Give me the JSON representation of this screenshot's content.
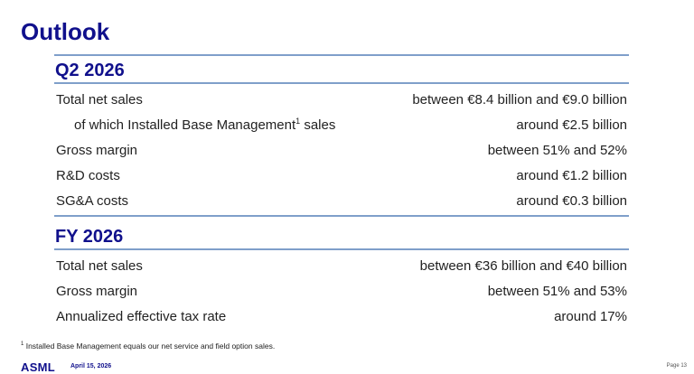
{
  "title": "Outlook",
  "sections": [
    {
      "heading": "Q2 2026",
      "rows": [
        {
          "label": "Total net sales",
          "value": "between €8.4 billion and €9.0 billion"
        },
        {
          "label": "of which Installed Base Management",
          "sup": "1",
          "label_suffix": " sales",
          "value": "around €2.5 billion"
        },
        {
          "label": "Gross margin",
          "value": "between 51% and 52%"
        },
        {
          "label": "R&D costs",
          "value": "around €1.2 billion"
        },
        {
          "label": "SG&A costs",
          "value": "around €0.3 billion"
        }
      ]
    },
    {
      "heading": "FY 2026",
      "rows": [
        {
          "label": "Total net sales",
          "value": "between €36 billion and €40 billion"
        },
        {
          "label": "Gross margin",
          "value": "between 51% and 53%"
        },
        {
          "label": "Annualized effective tax rate",
          "value": "around 17%"
        }
      ]
    }
  ],
  "footnote": {
    "marker": "1",
    "text": " Installed Base Management equals our net service and field option sales."
  },
  "footer": {
    "logo": "ASML",
    "date": "April 15, 2026",
    "page": "Page 13"
  }
}
